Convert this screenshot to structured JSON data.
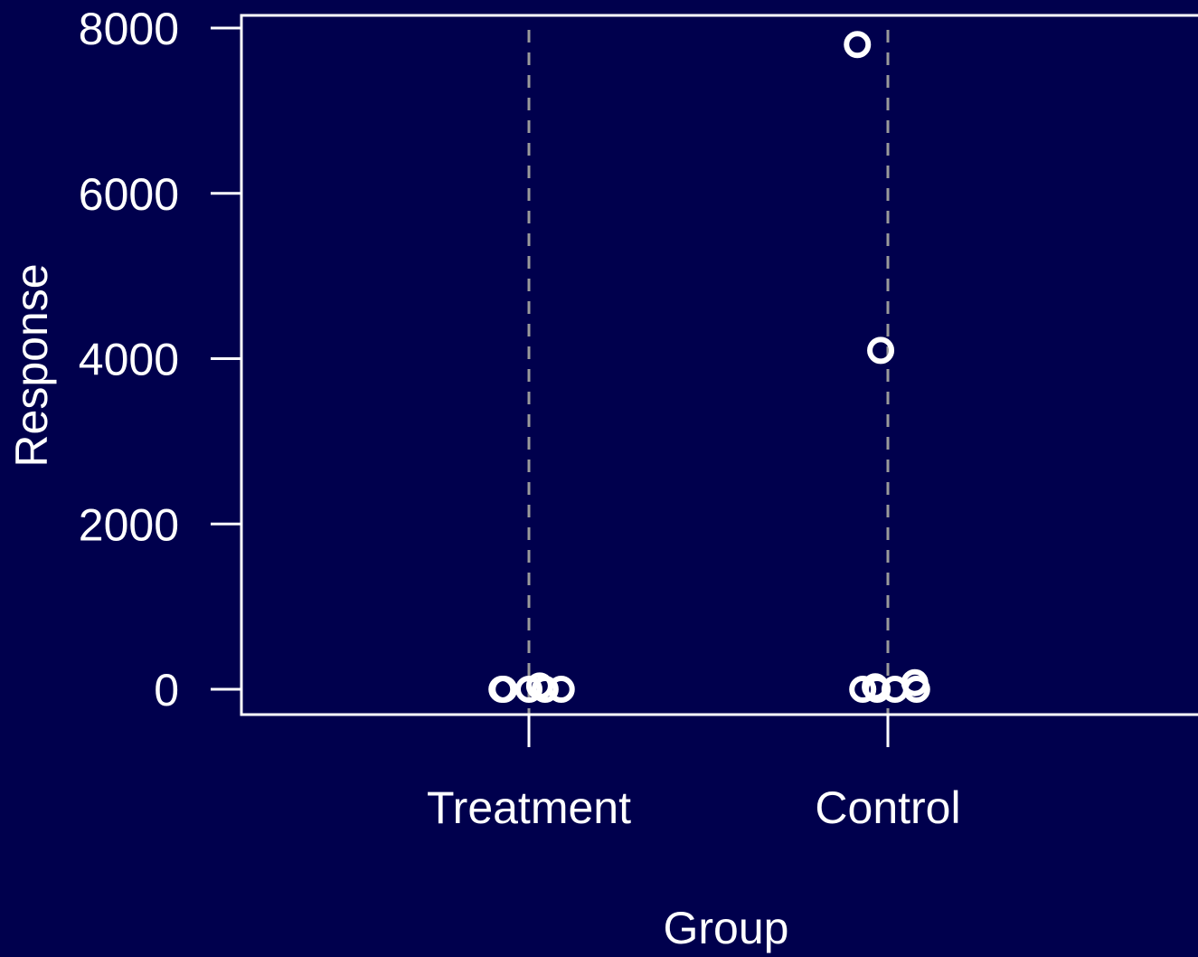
{
  "chart_data": {
    "type": "scatter",
    "title": "",
    "xlabel": "Group",
    "ylabel": "Response",
    "categories": [
      "Treatment",
      "Control"
    ],
    "ylim": [
      0,
      8000
    ],
    "yticks": [
      0,
      2000,
      4000,
      6000,
      8000
    ],
    "ytick_labels": [
      "0",
      "2000",
      "4000",
      "6000",
      "8000"
    ],
    "grid": false,
    "category_reference_lines": "dashed vertical line at each category",
    "marker": "open-circle",
    "colors": {
      "background": "#00004d",
      "foreground": "#ffffff",
      "reference_line": "#9a9a9a"
    },
    "points": [
      {
        "category": "Treatment",
        "jitter": -0.07,
        "y": 0
      },
      {
        "category": "Treatment",
        "jitter": -0.075,
        "y": 0
      },
      {
        "category": "Treatment",
        "jitter": 0.0,
        "y": 0
      },
      {
        "category": "Treatment",
        "jitter": 0.03,
        "y": 40
      },
      {
        "category": "Treatment",
        "jitter": 0.045,
        "y": 0
      },
      {
        "category": "Treatment",
        "jitter": 0.09,
        "y": 0
      },
      {
        "category": "Control",
        "jitter": -0.085,
        "y": 7800
      },
      {
        "category": "Control",
        "jitter": -0.02,
        "y": 4100
      },
      {
        "category": "Control",
        "jitter": -0.07,
        "y": 0
      },
      {
        "category": "Control",
        "jitter": -0.035,
        "y": 30
      },
      {
        "category": "Control",
        "jitter": -0.03,
        "y": 0
      },
      {
        "category": "Control",
        "jitter": 0.02,
        "y": 0
      },
      {
        "category": "Control",
        "jitter": 0.075,
        "y": 80
      },
      {
        "category": "Control",
        "jitter": 0.08,
        "y": 0
      }
    ]
  }
}
